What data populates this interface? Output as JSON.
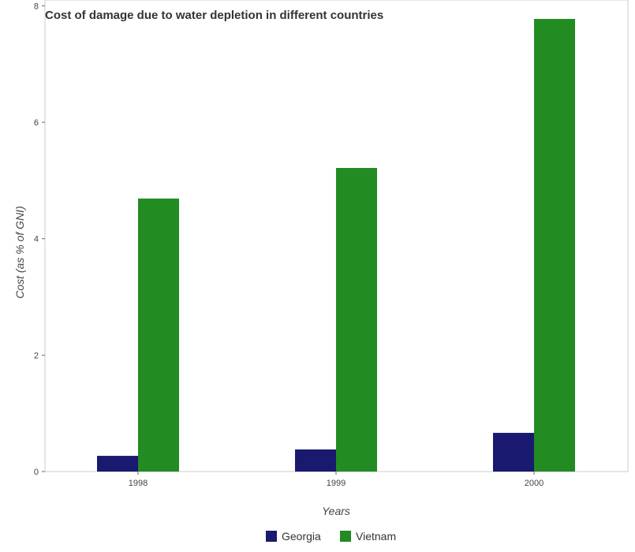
{
  "chart_data": {
    "type": "bar",
    "title": "Cost of damage due to water depletion in different countries",
    "xlabel": "Years",
    "ylabel": "Cost (as % of GNI)",
    "categories": [
      "1998",
      "1999",
      "2000"
    ],
    "series": [
      {
        "name": "Georgia",
        "color": "#191970",
        "values": [
          0.27,
          0.38,
          0.665
        ]
      },
      {
        "name": "Vietnam",
        "color": "#228B22",
        "values": [
          4.69,
          5.215,
          7.775
        ]
      }
    ],
    "ylim": [
      0,
      8.1
    ],
    "yticks": [
      0,
      2,
      4,
      6,
      8
    ],
    "grid": false,
    "legend_position": "bottom-center"
  }
}
